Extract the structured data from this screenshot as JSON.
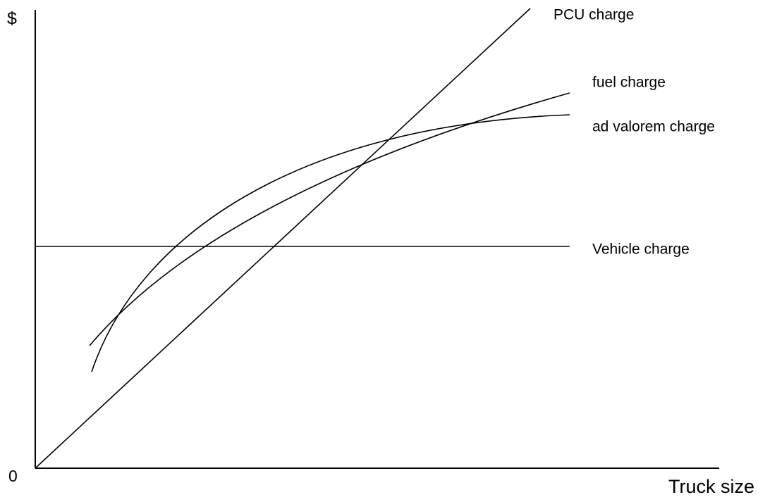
{
  "axes": {
    "y_label": "$",
    "origin": "0",
    "x_label": "Truck size"
  },
  "curves": [
    {
      "label": "PCU charge"
    },
    {
      "label": "fuel charge"
    },
    {
      "label": "ad valorem charge"
    },
    {
      "label": "Vehicle charge"
    }
  ]
}
